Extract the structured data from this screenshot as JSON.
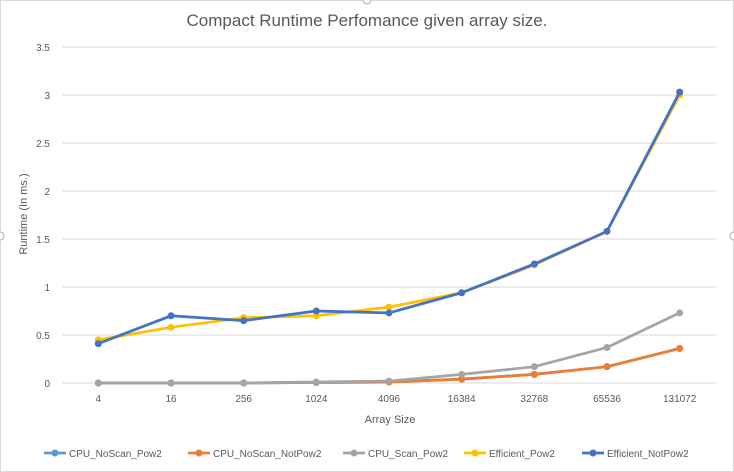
{
  "chart_data": {
    "type": "line",
    "title": "Compact Runtime Perfomance given array size.",
    "xlabel": "Array Size",
    "ylabel": "Runtime (In ms.)",
    "categories": [
      "4",
      "16",
      "256",
      "1024",
      "4096",
      "16384",
      "32768",
      "65536",
      "131072"
    ],
    "ylim": [
      0,
      3.5
    ],
    "yticks": [
      "0",
      "0.5",
      "1",
      "1.5",
      "2",
      "2.5",
      "3",
      "3.5"
    ],
    "grid": true,
    "legend": "bottom",
    "series": [
      {
        "name": "CPU_NoScan_Pow2",
        "color": "#5b9bd5",
        "values": [
          0,
          0,
          0,
          0.005,
          0.01,
          0.04,
          0.09,
          0.17,
          0.36
        ]
      },
      {
        "name": "CPU_NoScan_NotPow2",
        "color": "#ed7d31",
        "values": [
          0,
          0,
          0,
          0.005,
          0.01,
          0.04,
          0.09,
          0.17,
          0.36
        ]
      },
      {
        "name": "CPU_Scan_Pow2",
        "color": "#a5a5a5",
        "values": [
          0,
          0,
          0,
          0.01,
          0.02,
          0.09,
          0.17,
          0.37,
          0.73
        ]
      },
      {
        "name": "Efficient_Pow2",
        "color": "#ffc000",
        "values": [
          0.45,
          0.58,
          0.68,
          0.7,
          0.79,
          0.94,
          1.23,
          1.58,
          3.0
        ]
      },
      {
        "name": "Efficient_NotPow2",
        "color": "#4472c4",
        "values": [
          0.41,
          0.7,
          0.65,
          0.75,
          0.73,
          0.94,
          1.24,
          1.58,
          3.03
        ]
      }
    ]
  }
}
